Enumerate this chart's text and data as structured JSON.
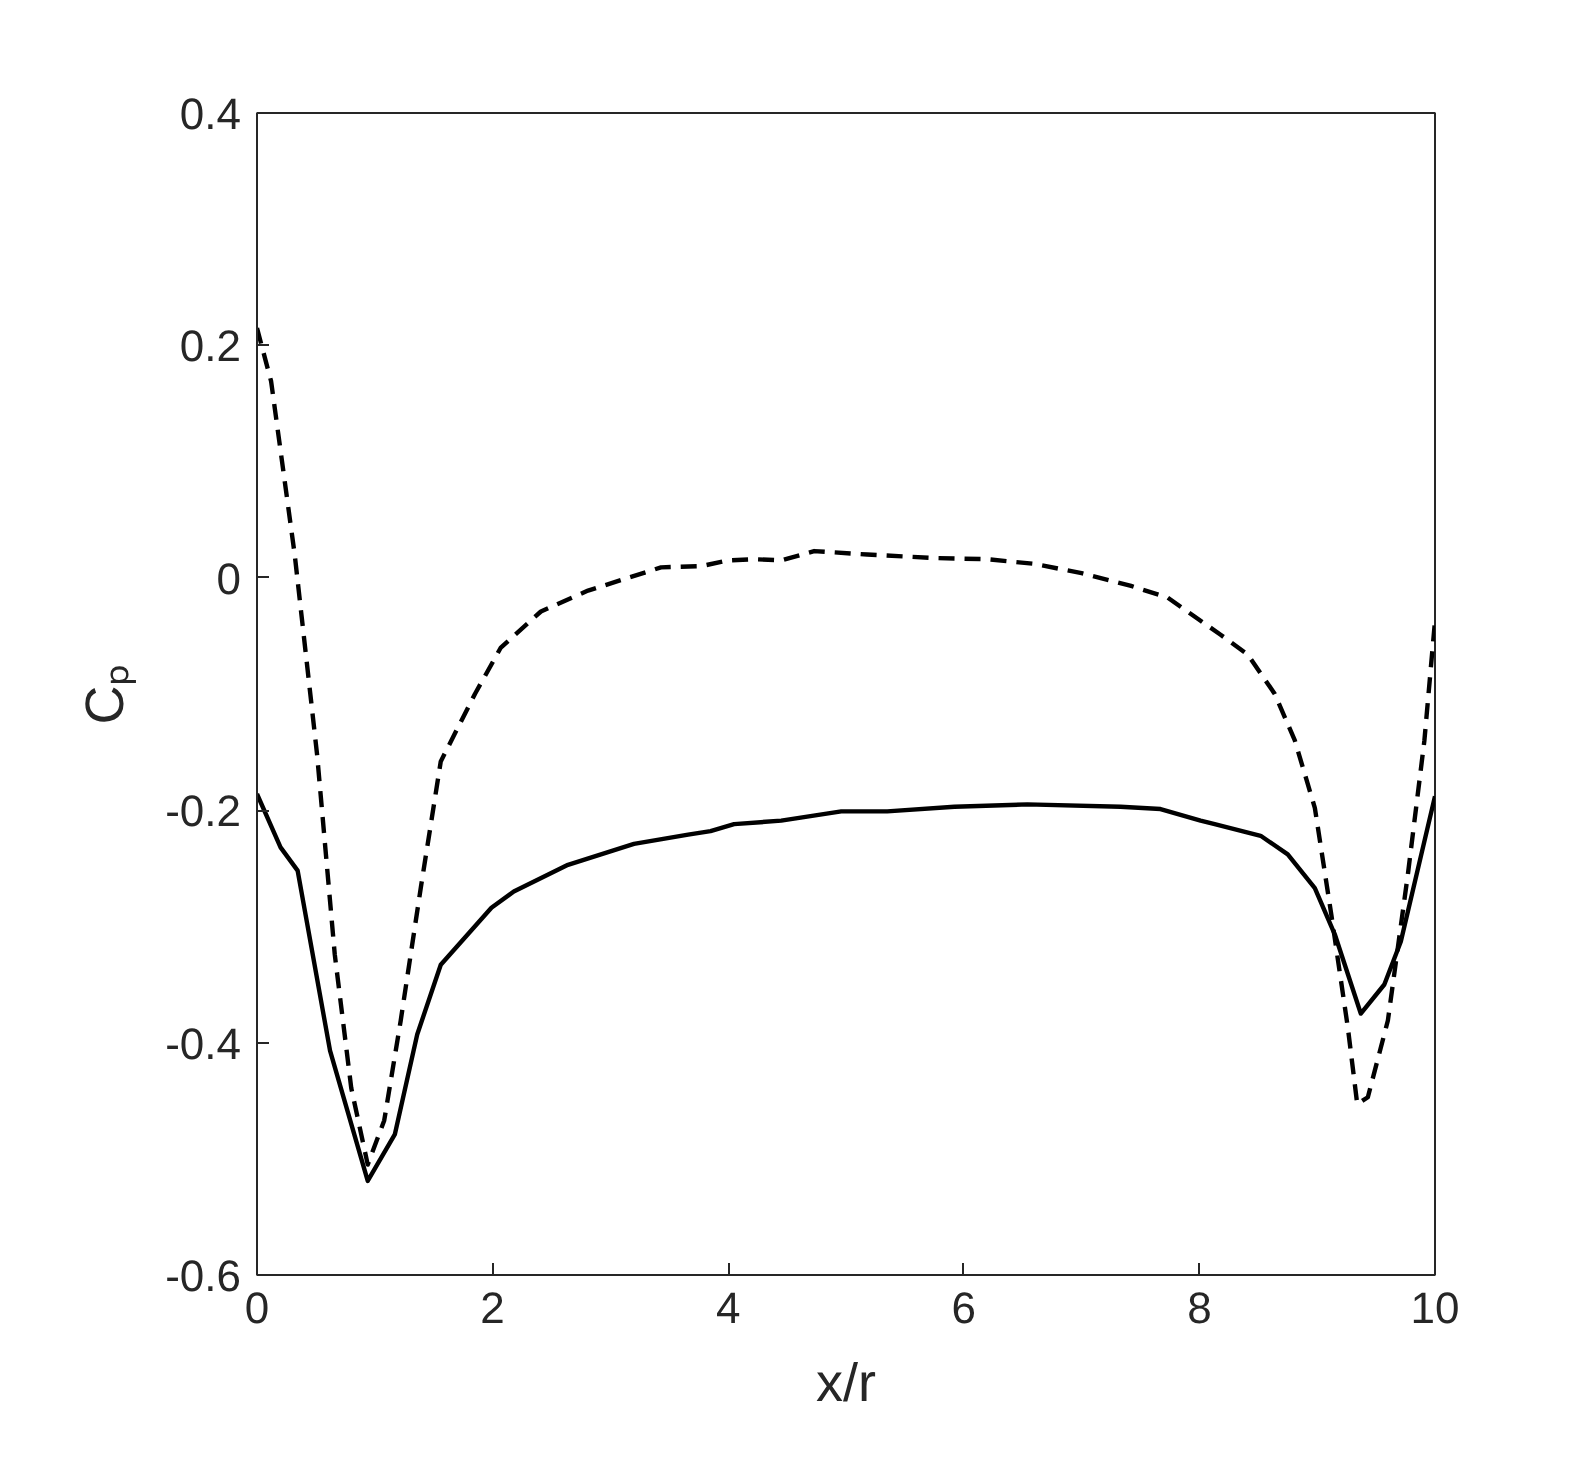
{
  "chart_data": {
    "type": "line",
    "xlabel": "x/r",
    "ylabel": "Cₚ",
    "xlim": [
      0,
      10
    ],
    "ylim": [
      -0.6,
      0.4
    ],
    "xticks": [
      0,
      2,
      4,
      6,
      8,
      10
    ],
    "yticks": [
      -0.6,
      -0.4,
      -0.2,
      0,
      0.2,
      0.4
    ],
    "grid": false,
    "series": [
      {
        "color": "#000000",
        "line_style": "solid",
        "x": [
          0,
          0.2,
          0.345,
          0.62,
          0.94,
          1.17,
          1.36,
          1.56,
          1.99,
          2.18,
          2.64,
          2.92,
          3.2,
          3.66,
          3.85,
          4.05,
          4.45,
          4.96,
          5.35,
          5.92,
          6.54,
          7.33,
          7.67,
          8.01,
          8.13,
          8.52,
          8.75,
          8.98,
          9.15,
          9.37,
          9.57,
          9.71,
          10.0
        ],
        "values": [
          -0.186,
          -0.232,
          -0.252,
          -0.407,
          -0.519,
          -0.479,
          -0.393,
          -0.333,
          -0.284,
          -0.27,
          -0.247,
          -0.238,
          -0.229,
          -0.221,
          -0.218,
          -0.212,
          -0.209,
          -0.201,
          -0.201,
          -0.197,
          -0.195,
          -0.197,
          -0.199,
          -0.209,
          -0.212,
          -0.222,
          -0.238,
          -0.267,
          -0.307,
          -0.375,
          -0.35,
          -0.313,
          -0.188
        ]
      },
      {
        "color": "#000000",
        "line_style": "dashed",
        "x": [
          0,
          0.12,
          0.32,
          0.51,
          0.66,
          0.8,
          0.94,
          1.08,
          1.22,
          1.39,
          1.56,
          1.85,
          2.07,
          2.41,
          2.81,
          3.43,
          3.77,
          4.0,
          4.22,
          4.45,
          4.73,
          5.18,
          5.75,
          6.2,
          6.6,
          7.0,
          7.42,
          7.73,
          8.01,
          8.18,
          8.41,
          8.64,
          8.81,
          8.98,
          9.12,
          9.26,
          9.34,
          9.43,
          9.6,
          9.77,
          9.91,
          10.0
        ],
        "values": [
          0.215,
          0.169,
          0.02,
          -0.152,
          -0.324,
          -0.439,
          -0.505,
          -0.467,
          -0.381,
          -0.267,
          -0.158,
          -0.1,
          -0.06,
          -0.029,
          -0.011,
          0.009,
          0.01,
          0.015,
          0.016,
          0.015,
          0.023,
          0.02,
          0.017,
          0.016,
          0.012,
          0.004,
          -0.007,
          -0.017,
          -0.037,
          -0.049,
          -0.066,
          -0.1,
          -0.14,
          -0.198,
          -0.29,
          -0.387,
          -0.453,
          -0.447,
          -0.381,
          -0.255,
          -0.14,
          -0.037
        ]
      }
    ]
  }
}
